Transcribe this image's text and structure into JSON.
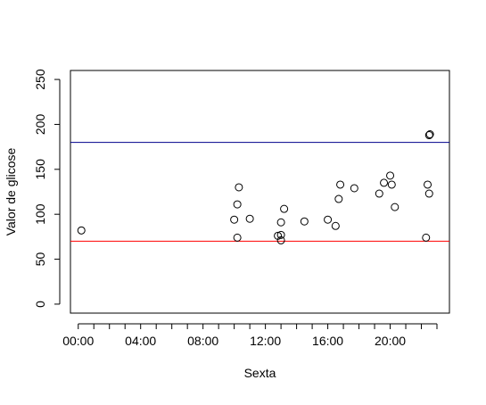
{
  "chart_data": {
    "type": "scatter",
    "title": "",
    "xlabel": "Sexta",
    "ylabel": "Valor de glicose",
    "xlim": [
      -0.5,
      23.8
    ],
    "ylim": [
      -10,
      260
    ],
    "x_ticks": [
      {
        "value": 0,
        "label": "00:00"
      },
      {
        "value": 4,
        "label": "04:00"
      },
      {
        "value": 8,
        "label": "08:00"
      },
      {
        "value": 12,
        "label": "12:00"
      },
      {
        "value": 16,
        "label": "16:00"
      },
      {
        "value": 20,
        "label": "20:00"
      }
    ],
    "x_minor_ticks": [
      0,
      1,
      2,
      3,
      4,
      5,
      6,
      7,
      8,
      9,
      10,
      11,
      12,
      13,
      14,
      15,
      16,
      17,
      18,
      19,
      20,
      21,
      22,
      23
    ],
    "y_ticks": [
      0,
      50,
      100,
      150,
      200,
      250
    ],
    "reference_lines": [
      {
        "y": 180,
        "color": "#00008b"
      },
      {
        "y": 70,
        "color": "#ff0000"
      }
    ],
    "grid": false,
    "series": [
      {
        "marker": "open-circle",
        "color": "#000000",
        "points": [
          {
            "x": 0.2,
            "y": 82
          },
          {
            "x": 10.0,
            "y": 94
          },
          {
            "x": 10.2,
            "y": 74
          },
          {
            "x": 10.2,
            "y": 111
          },
          {
            "x": 10.3,
            "y": 130
          },
          {
            "x": 11.0,
            "y": 95
          },
          {
            "x": 12.8,
            "y": 76
          },
          {
            "x": 13.0,
            "y": 77
          },
          {
            "x": 13.0,
            "y": 71
          },
          {
            "x": 13.0,
            "y": 91
          },
          {
            "x": 13.2,
            "y": 106
          },
          {
            "x": 14.5,
            "y": 92
          },
          {
            "x": 16.0,
            "y": 94
          },
          {
            "x": 16.5,
            "y": 87
          },
          {
            "x": 16.7,
            "y": 117
          },
          {
            "x": 16.8,
            "y": 133
          },
          {
            "x": 17.7,
            "y": 129
          },
          {
            "x": 19.3,
            "y": 123
          },
          {
            "x": 19.6,
            "y": 135
          },
          {
            "x": 20.0,
            "y": 143
          },
          {
            "x": 20.1,
            "y": 133
          },
          {
            "x": 20.3,
            "y": 108
          },
          {
            "x": 22.3,
            "y": 74
          },
          {
            "x": 22.4,
            "y": 133
          },
          {
            "x": 22.5,
            "y": 123
          },
          {
            "x": 22.5,
            "y": 188
          },
          {
            "x": 22.55,
            "y": 189
          }
        ]
      }
    ]
  }
}
